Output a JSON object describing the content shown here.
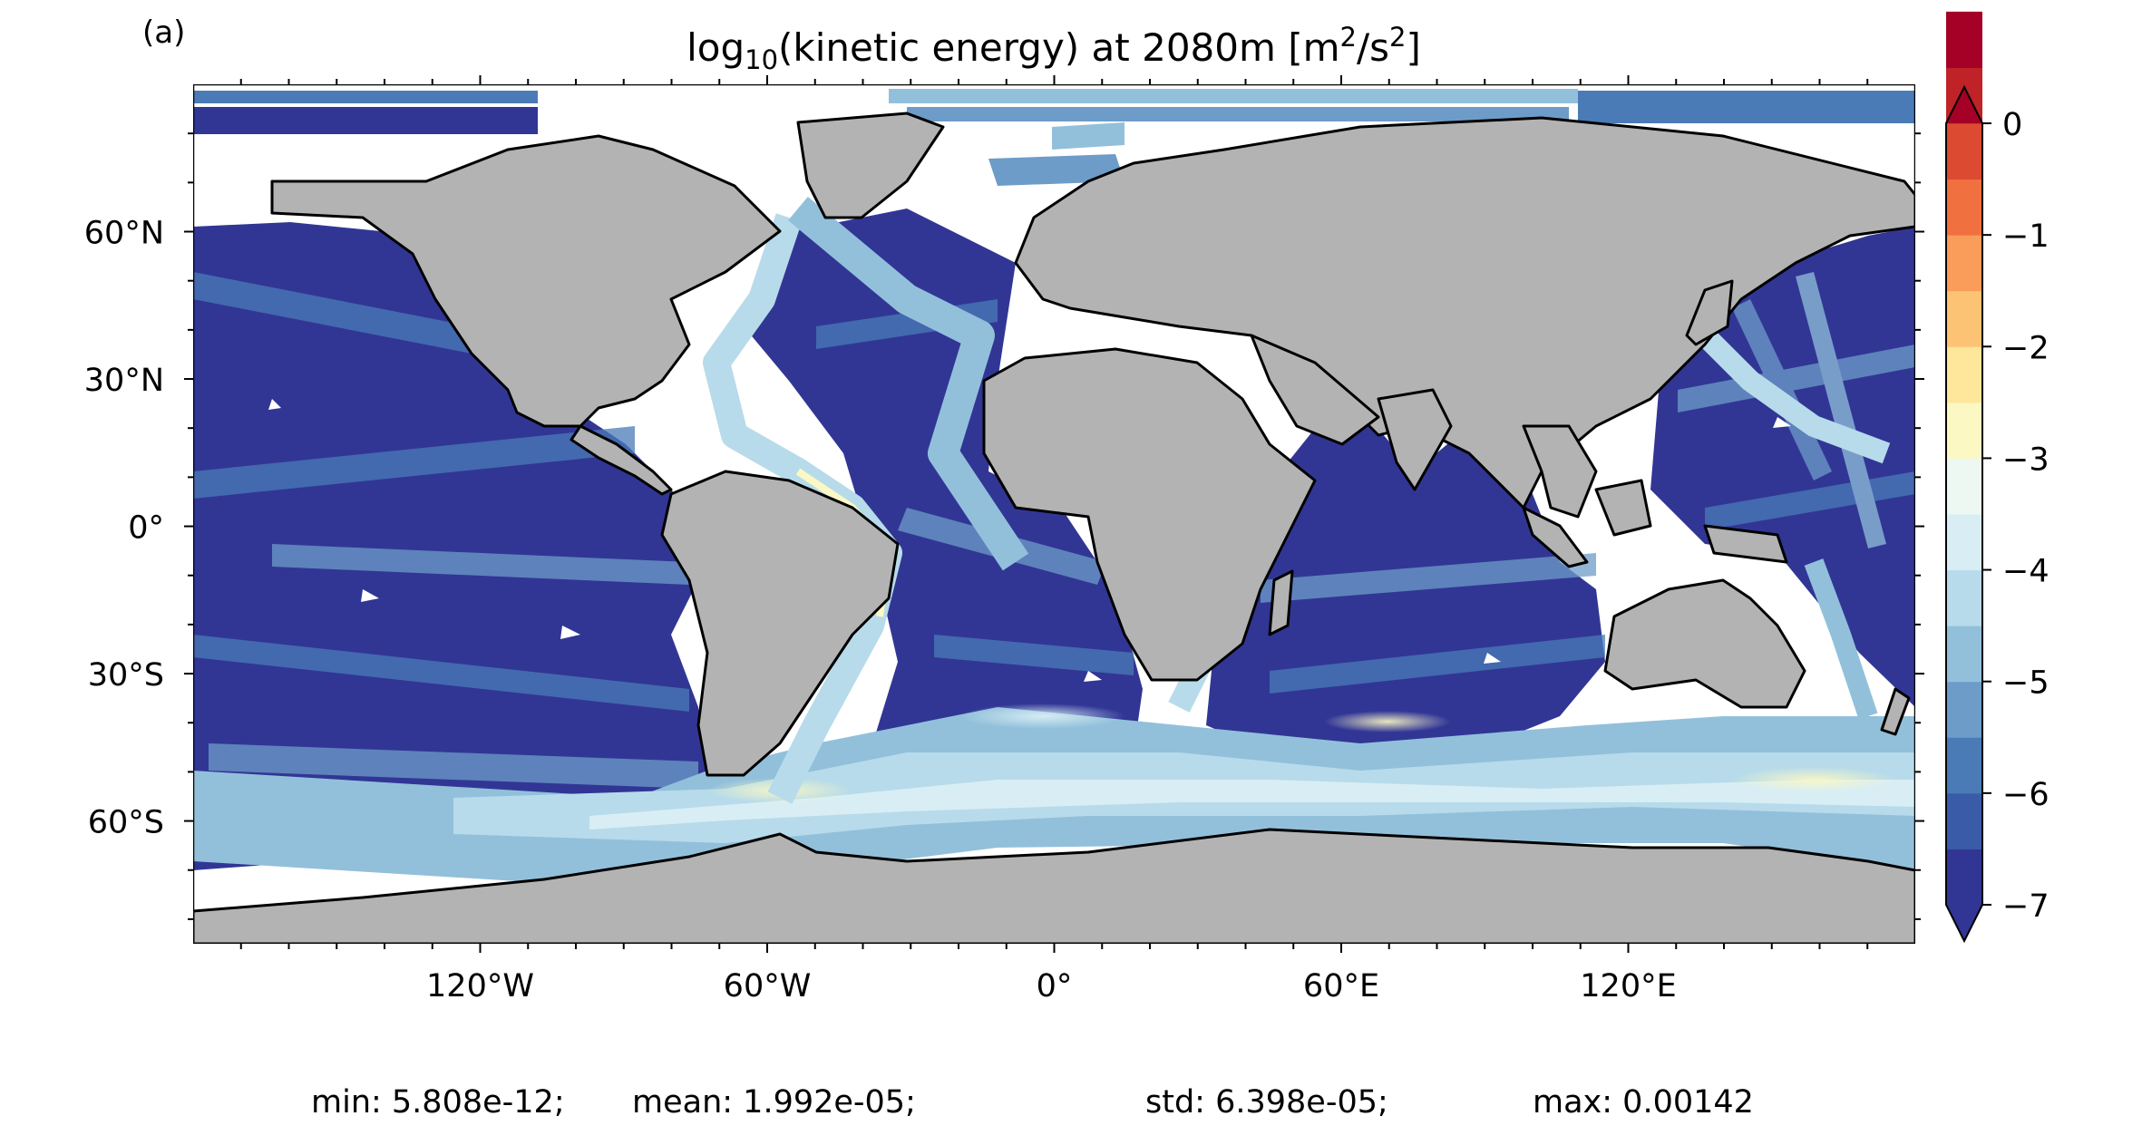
{
  "panel_label": "(a)",
  "title": {
    "prefix": "log",
    "subscript": "10",
    "middle": "(kinetic energy) at 2080m [m",
    "sup1": "2",
    "mid2": "/s",
    "sup2": "2",
    "suffix": "]"
  },
  "lat_ticks": [
    {
      "value": 60,
      "label": "60°N"
    },
    {
      "value": 30,
      "label": "30°N"
    },
    {
      "value": 0,
      "label": "0°"
    },
    {
      "value": -30,
      "label": "30°S"
    },
    {
      "value": -60,
      "label": "60°S"
    }
  ],
  "lon_ticks": [
    {
      "value": -120,
      "label": "120°W"
    },
    {
      "value": -60,
      "label": "60°W"
    },
    {
      "value": 0,
      "label": "0°"
    },
    {
      "value": 60,
      "label": "60°E"
    },
    {
      "value": 120,
      "label": "120°E"
    }
  ],
  "colorbar": {
    "min": -7,
    "max": 0,
    "step": 0.5,
    "extend": "both",
    "tick_values": [
      0,
      -1,
      -2,
      -3,
      -4,
      -5,
      -6,
      -7
    ],
    "tick_labels": [
      "0",
      "−1",
      "−2",
      "−3",
      "−4",
      "−5",
      "−6",
      "−7"
    ],
    "colors": [
      "#313695",
      "#3a5ca8",
      "#4a7bb7",
      "#6d9cc8",
      "#92c0db",
      "#b7dbea",
      "#d8eef4",
      "#eef8f3",
      "#fbf8c4",
      "#fee69a",
      "#fdc374",
      "#fa9d5a",
      "#f1703f",
      "#dc4a32",
      "#bf2327",
      "#a50026"
    ],
    "under_color": "#313695",
    "over_color": "#a50026"
  },
  "map": {
    "land_color": "#b3b3b3",
    "coastline_color": "#000000",
    "nodata_color": "#ffffff"
  },
  "stats": {
    "min": "min: 5.808e-12;",
    "mean": "mean: 1.992e-05;",
    "std": "std: 6.398e-05;",
    "max": "max: 0.00142"
  }
}
